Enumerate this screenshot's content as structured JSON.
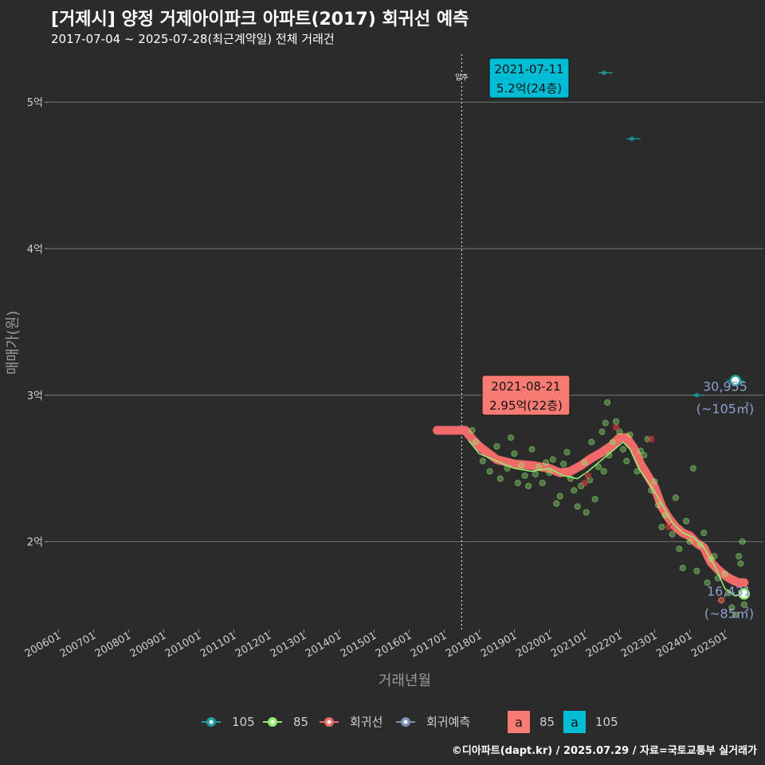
{
  "title": "[거제시] 양정 거제아이파크 아파트(2017) 회귀선 예측",
  "subtitle": "2017-07-04 ~ 2025-07-28(최근계약일) 전체 거래건",
  "credit": "©디아파트(dapt.kr) / 2025.07.29 / 자료=국토교통부 실거래가",
  "chart_data": {
    "type": "scatter",
    "xlabel": "거래년월",
    "ylabel": "매매가(원)",
    "x_range": [
      "2006-01",
      "2025-12"
    ],
    "ylim": [
      14000,
      53600
    ],
    "y_ticks": [
      {
        "v": 20000,
        "label": "2억"
      },
      {
        "v": 30000,
        "label": "3억"
      },
      {
        "v": 40000,
        "label": "4억"
      },
      {
        "v": 50000,
        "label": "5억"
      }
    ],
    "x_ticks": [
      "200601",
      "200701",
      "200801",
      "200901",
      "201001",
      "201101",
      "201201",
      "201301",
      "201401",
      "201501",
      "201601",
      "201701",
      "201801",
      "201901",
      "202001",
      "202101",
      "202201",
      "202301",
      "202401",
      "202501"
    ],
    "vline": {
      "date": "2017-07",
      "label": "입주"
    },
    "colors": {
      "s105": "#1f9e9e",
      "s85": "#90ee70",
      "regression": "#f06a6a",
      "forecast": "#7f8fb3",
      "ann105": "#00bcd4",
      "ann85": "#f77b72",
      "endlabel": "#8da0cb"
    },
    "annotations": [
      {
        "series": "105",
        "date": "2021-07-11",
        "value": 52000,
        "line1": "2021-07-11",
        "line2": "5.2억(24층)"
      },
      {
        "series": "85",
        "date": "2021-08-21",
        "value": 29500,
        "line1": "2021-08-21",
        "line2": "2.95억(22층)"
      }
    ],
    "end_labels": [
      {
        "series": "105",
        "value": 30955,
        "line1": "30,955",
        "line2": "(~105㎡)"
      },
      {
        "series": "85",
        "value": 16431,
        "line1": "16,431",
        "line2": "(~85㎡)"
      }
    ],
    "series": [
      {
        "name": "105",
        "points": [
          [
            2021.55,
            52000
          ],
          [
            2022.35,
            47500
          ],
          [
            2024.2,
            30000
          ],
          [
            2025.3,
            31000
          ]
        ]
      },
      {
        "name": "85",
        "points": [
          [
            2017.8,
            27600
          ],
          [
            2017.9,
            26800
          ],
          [
            2018.1,
            25500
          ],
          [
            2018.3,
            24800
          ],
          [
            2018.5,
            26500
          ],
          [
            2018.6,
            24300
          ],
          [
            2018.8,
            25000
          ],
          [
            2018.9,
            27100
          ],
          [
            2019.0,
            26000
          ],
          [
            2019.1,
            24000
          ],
          [
            2019.2,
            25200
          ],
          [
            2019.3,
            24500
          ],
          [
            2019.4,
            23800
          ],
          [
            2019.5,
            26300
          ],
          [
            2019.6,
            24600
          ],
          [
            2019.7,
            25100
          ],
          [
            2019.8,
            24000
          ],
          [
            2019.9,
            25400
          ],
          [
            2020.0,
            24700
          ],
          [
            2020.1,
            25600
          ],
          [
            2020.2,
            22600
          ],
          [
            2020.3,
            23100
          ],
          [
            2020.4,
            25300
          ],
          [
            2020.5,
            26100
          ],
          [
            2020.6,
            24300
          ],
          [
            2020.7,
            23500
          ],
          [
            2020.8,
            22400
          ],
          [
            2020.9,
            23800
          ],
          [
            2021.0,
            25400
          ],
          [
            2021.05,
            22000
          ],
          [
            2021.15,
            24200
          ],
          [
            2021.2,
            26800
          ],
          [
            2021.3,
            22900
          ],
          [
            2021.4,
            25100
          ],
          [
            2021.5,
            27500
          ],
          [
            2021.55,
            24800
          ],
          [
            2021.6,
            28100
          ],
          [
            2021.65,
            29500
          ],
          [
            2021.7,
            25900
          ],
          [
            2021.8,
            26800
          ],
          [
            2021.9,
            28200
          ],
          [
            2022.0,
            27500
          ],
          [
            2022.1,
            26300
          ],
          [
            2022.2,
            25500
          ],
          [
            2022.3,
            27300
          ],
          [
            2022.5,
            24800
          ],
          [
            2022.6,
            26200
          ],
          [
            2022.7,
            25900
          ],
          [
            2022.8,
            27000
          ],
          [
            2022.9,
            23500
          ],
          [
            2023.0,
            24100
          ],
          [
            2023.1,
            22500
          ],
          [
            2023.2,
            21000
          ],
          [
            2023.3,
            21800
          ],
          [
            2023.5,
            20500
          ],
          [
            2023.6,
            23000
          ],
          [
            2023.7,
            19500
          ],
          [
            2023.8,
            18200
          ],
          [
            2023.9,
            21400
          ],
          [
            2024.0,
            20000
          ],
          [
            2024.1,
            25000
          ],
          [
            2024.2,
            18000
          ],
          [
            2024.3,
            19800
          ],
          [
            2024.4,
            20600
          ],
          [
            2024.5,
            17200
          ],
          [
            2024.6,
            18800
          ],
          [
            2024.7,
            19000
          ],
          [
            2024.8,
            17500
          ],
          [
            2024.9,
            16000
          ],
          [
            2025.0,
            17800
          ],
          [
            2025.1,
            16500
          ],
          [
            2025.2,
            15500
          ],
          [
            2025.3,
            15000
          ],
          [
            2025.4,
            19000
          ],
          [
            2025.45,
            18500
          ],
          [
            2025.5,
            20000
          ],
          [
            2025.55,
            15700
          ]
        ]
      },
      {
        "name": "회귀선",
        "points": [
          [
            2016.8,
            27600
          ],
          [
            2017.2,
            27600
          ],
          [
            2017.6,
            27600
          ],
          [
            2017.8,
            27000
          ],
          [
            2018.0,
            26500
          ],
          [
            2018.5,
            25600
          ],
          [
            2019.0,
            25300
          ],
          [
            2019.5,
            25200
          ],
          [
            2020.0,
            25000
          ],
          [
            2020.3,
            24700
          ],
          [
            2020.6,
            24800
          ],
          [
            2020.9,
            25200
          ],
          [
            2021.2,
            25700
          ],
          [
            2021.5,
            26100
          ],
          [
            2021.8,
            26600
          ],
          [
            2022.0,
            27100
          ],
          [
            2022.2,
            27100
          ],
          [
            2022.4,
            26400
          ],
          [
            2022.6,
            25300
          ],
          [
            2022.8,
            24500
          ],
          [
            2023.0,
            23700
          ],
          [
            2023.2,
            22400
          ],
          [
            2023.4,
            21600
          ],
          [
            2023.6,
            21000
          ],
          [
            2023.8,
            20600
          ],
          [
            2024.0,
            20400
          ],
          [
            2024.2,
            19900
          ],
          [
            2024.4,
            19600
          ],
          [
            2024.6,
            18600
          ],
          [
            2024.8,
            18100
          ],
          [
            2025.0,
            17700
          ],
          [
            2025.2,
            17400
          ],
          [
            2025.4,
            17200
          ],
          [
            2025.55,
            17200
          ]
        ]
      },
      {
        "name": "85-trend",
        "points": [
          [
            2017.7,
            26900
          ],
          [
            2018.0,
            26000
          ],
          [
            2018.5,
            25500
          ],
          [
            2019.0,
            25000
          ],
          [
            2019.5,
            24800
          ],
          [
            2020.0,
            25000
          ],
          [
            2020.4,
            24500
          ],
          [
            2020.8,
            24300
          ],
          [
            2021.1,
            24800
          ],
          [
            2021.5,
            25600
          ],
          [
            2021.8,
            26200
          ],
          [
            2022.1,
            26800
          ],
          [
            2022.3,
            26300
          ],
          [
            2022.6,
            24800
          ],
          [
            2022.9,
            23800
          ],
          [
            2023.2,
            22600
          ],
          [
            2023.5,
            21300
          ],
          [
            2023.8,
            20600
          ],
          [
            2024.1,
            20300
          ],
          [
            2024.4,
            19600
          ],
          [
            2024.7,
            18400
          ],
          [
            2025.0,
            16800
          ],
          [
            2025.3,
            16300
          ],
          [
            2025.55,
            16431
          ]
        ]
      },
      {
        "name": "105-trend",
        "points": [
          [
            2021.4,
            52000
          ],
          [
            2021.8,
            52000
          ]
        ]
      },
      {
        "name": "105-trend2",
        "points": [
          [
            2022.2,
            47500
          ],
          [
            2022.6,
            47500
          ]
        ]
      },
      {
        "name": "105-trend3",
        "points": [
          [
            2024.05,
            30000
          ],
          [
            2024.4,
            30000
          ]
        ]
      },
      {
        "name": "105-trend4",
        "points": [
          [
            2025.05,
            31000
          ],
          [
            2025.55,
            30955
          ]
        ]
      },
      {
        "name": "회귀선-marks",
        "points": [
          [
            2021.9,
            27800
          ],
          [
            2022.9,
            27000
          ],
          [
            2023.4,
            21000
          ],
          [
            2021.1,
            24500
          ],
          [
            2024.9,
            16000
          ],
          [
            2021.0,
            24000
          ]
        ]
      }
    ],
    "legend": {
      "items": [
        {
          "key": "105",
          "label": "105"
        },
        {
          "key": "85",
          "label": "85"
        },
        {
          "key": "reg",
          "label": "회귀선"
        },
        {
          "key": "fc",
          "label": "회귀예측"
        }
      ],
      "box_items": [
        {
          "glyph": "a",
          "label": "85"
        },
        {
          "glyph": "a",
          "label": "105"
        }
      ]
    }
  }
}
